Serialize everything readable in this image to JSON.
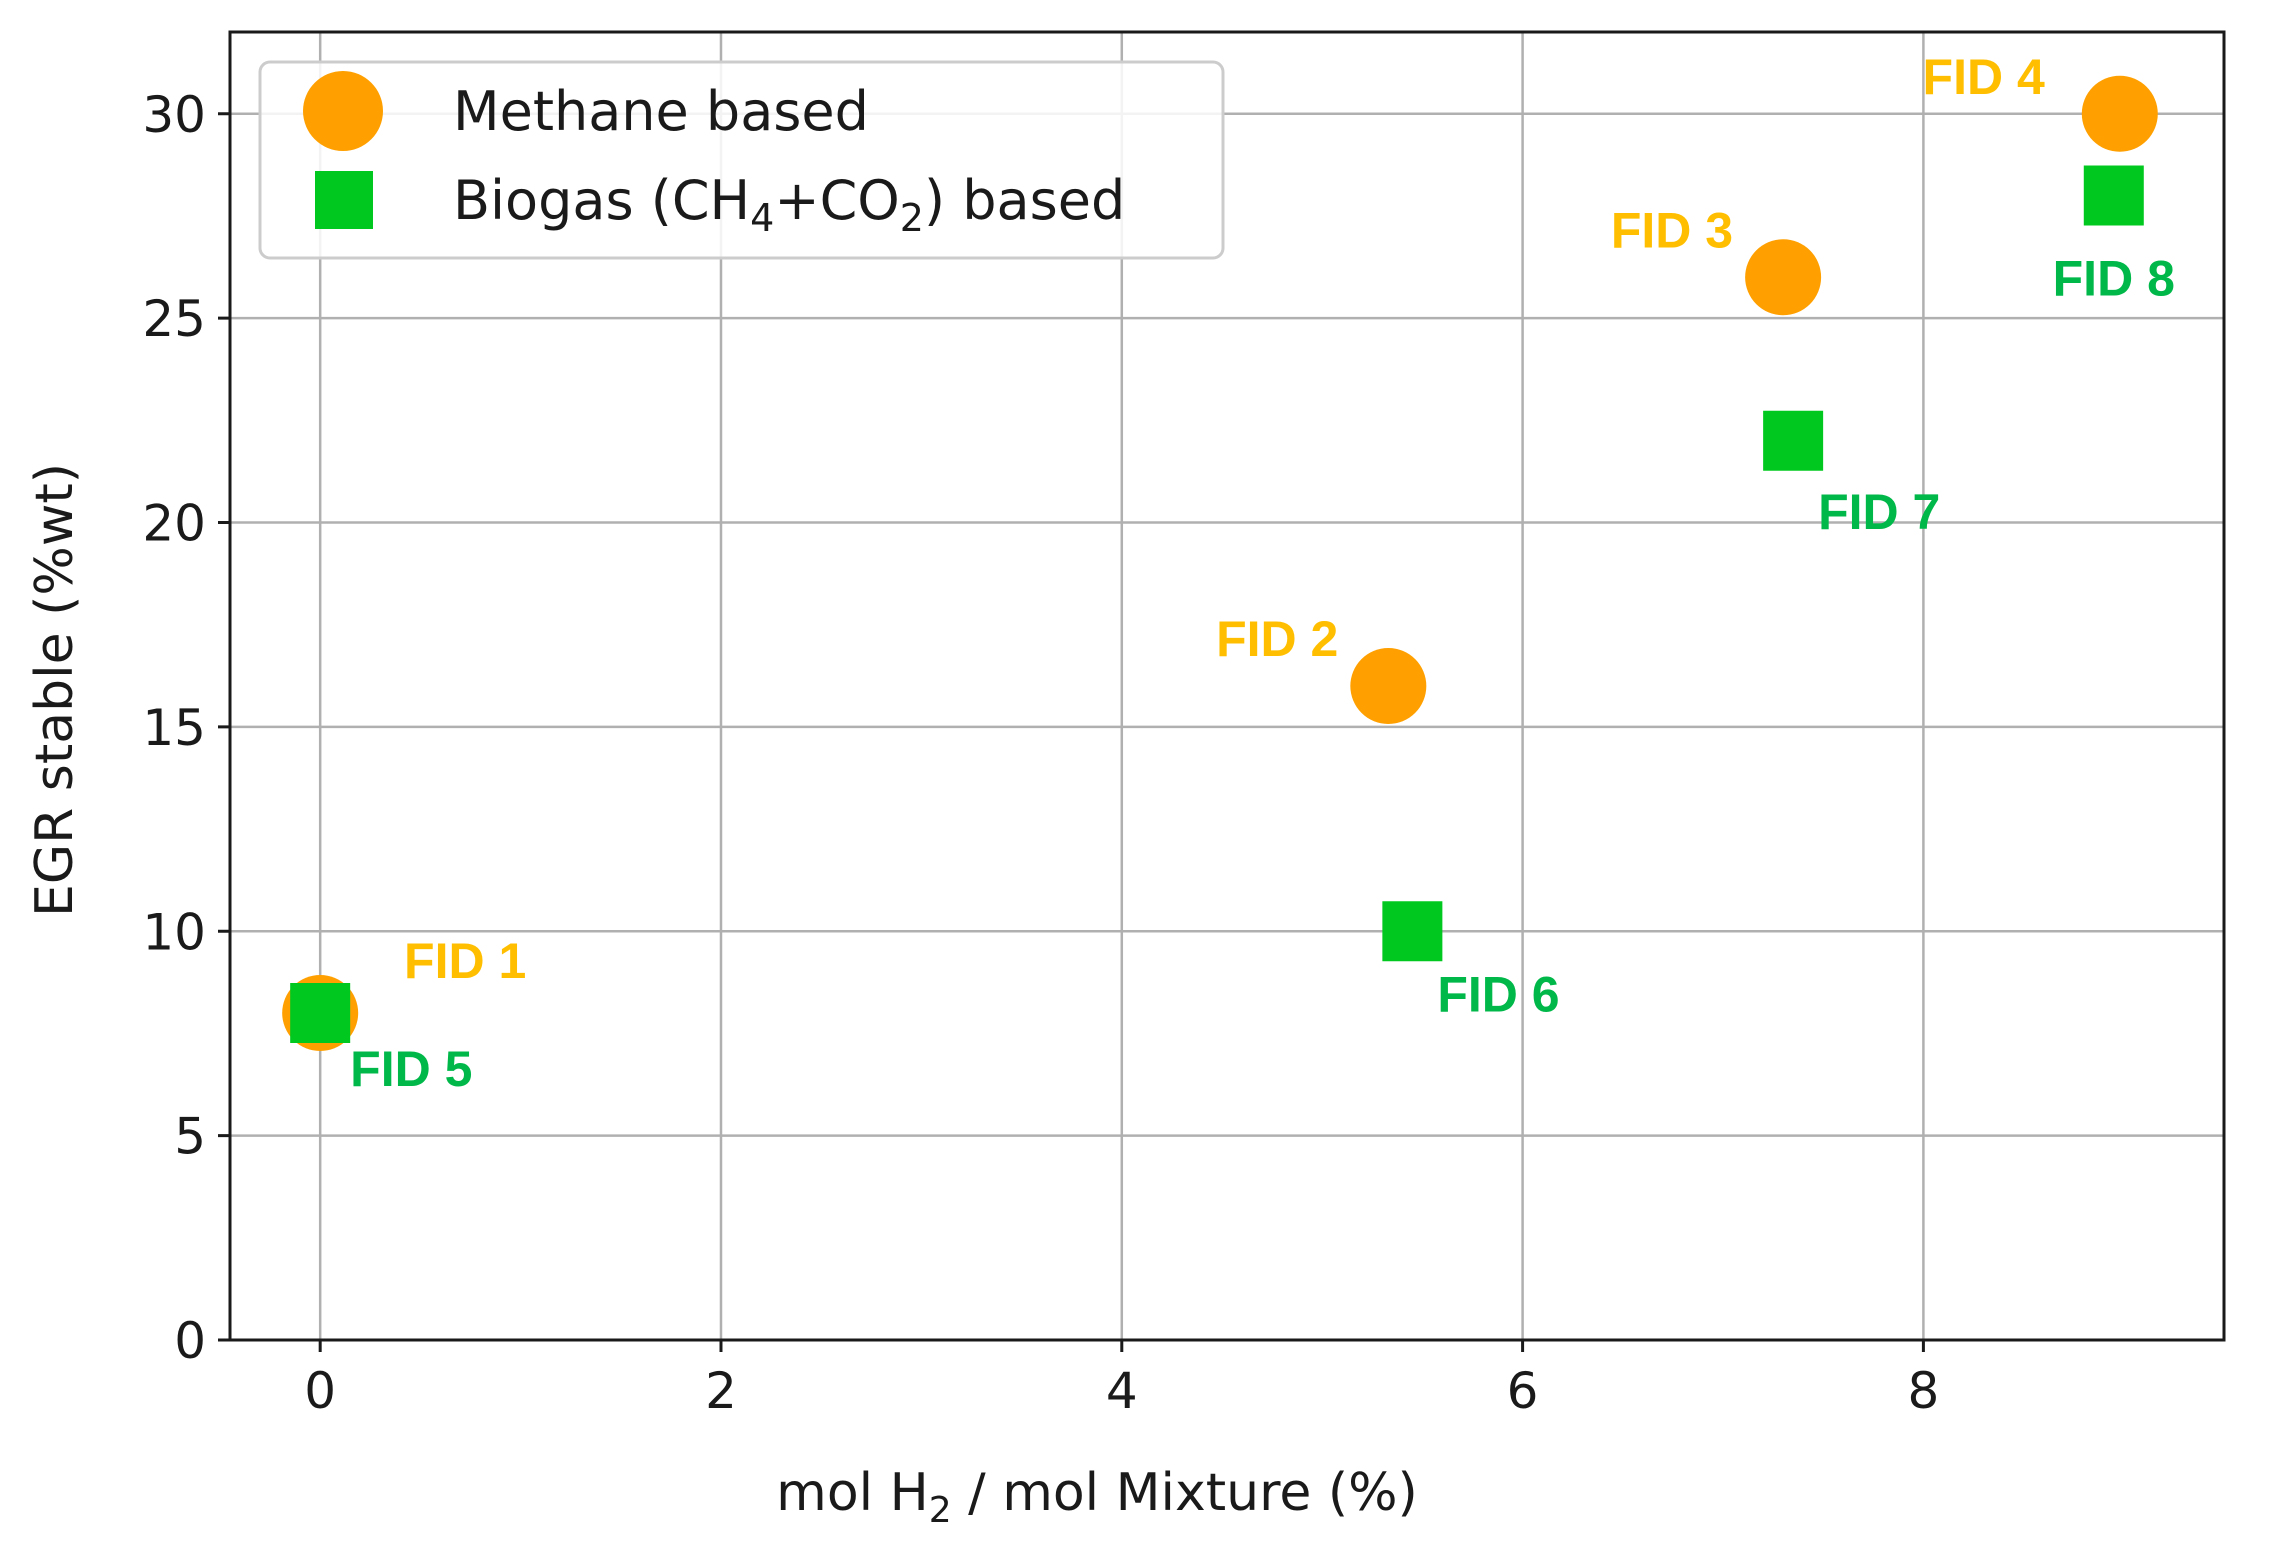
{
  "chart_data": {
    "type": "scatter",
    "title": "",
    "xlabel": {
      "pre": "mol H",
      "sub": "2",
      "post": " / mol Mixture (%)"
    },
    "ylabel": "EGR stable (%wt)",
    "xlim": [
      -0.45,
      9.5
    ],
    "ylim": [
      0,
      32
    ],
    "xticks": [
      0,
      2,
      4,
      6,
      8
    ],
    "yticks": [
      0,
      5,
      10,
      15,
      20,
      25,
      30
    ],
    "grid": true,
    "legend_position": "top-left",
    "series": [
      {
        "name": "Methane based",
        "legend_label": {
          "pre": "Methane based"
        },
        "marker": "circle",
        "color": "#ffa000",
        "label_color": "#ffbf00",
        "points": [
          {
            "x": 0.0,
            "y": 8,
            "label": "FID 1"
          },
          {
            "x": 5.33,
            "y": 16,
            "label": "FID 2"
          },
          {
            "x": 7.3,
            "y": 26,
            "label": "FID 3"
          },
          {
            "x": 8.98,
            "y": 30,
            "label": "FID 4"
          }
        ]
      },
      {
        "name": "Biogas (CH4+CO2) based",
        "legend_label": {
          "pre": "Biogas (CH",
          "sub1": "4",
          "mid": "+CO",
          "sub2": "2",
          "post": ") based"
        },
        "marker": "square",
        "color": "#00c81e",
        "label_color": "#00b84a",
        "points": [
          {
            "x": 0.0,
            "y": 8,
            "label": "FID 5"
          },
          {
            "x": 5.45,
            "y": 10,
            "label": "FID 6"
          },
          {
            "x": 7.35,
            "y": 22,
            "label": "FID 7"
          },
          {
            "x": 8.95,
            "y": 28,
            "label": "FID 8"
          }
        ]
      }
    ]
  }
}
